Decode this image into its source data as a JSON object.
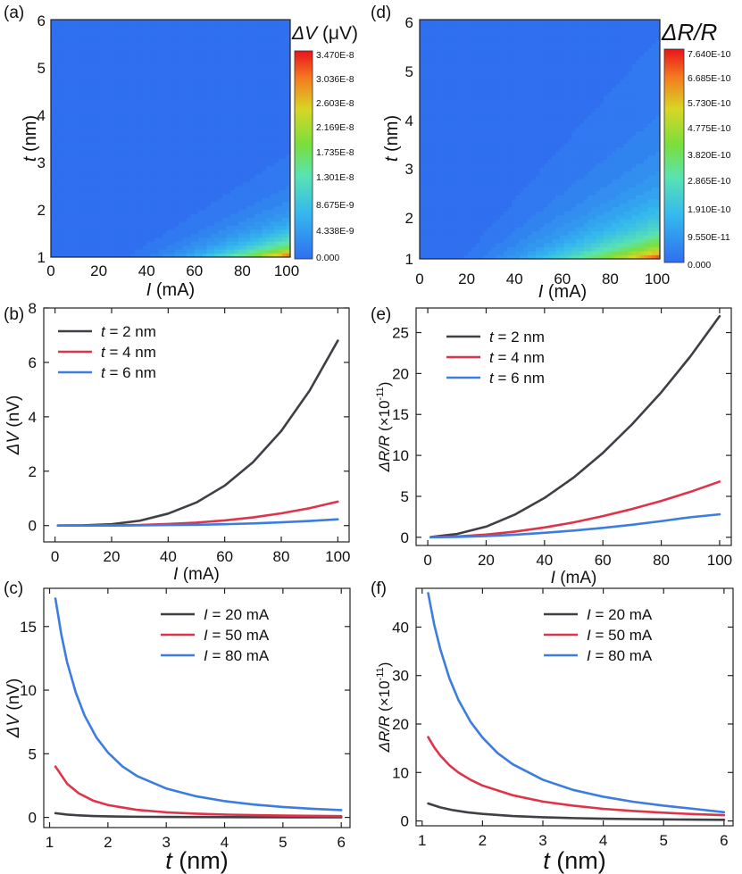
{
  "chart_data": [
    {
      "id": "a",
      "type": "heatmap",
      "panel_label": "(a)",
      "xlabel": "I (mA)",
      "xlabel_var": "I",
      "xlabel_unit": " (mA)",
      "ylabel": "t (nm)",
      "ylabel_var": "t",
      "ylabel_unit": " (nm)",
      "xlim": [
        0,
        100
      ],
      "ylim": [
        1,
        6
      ],
      "xticks": [
        "0",
        "20",
        "40",
        "60",
        "80",
        "100"
      ],
      "yticks": [
        "1",
        "2",
        "3",
        "4",
        "5",
        "6"
      ],
      "colorbar_title": "ΔV (μV)",
      "colorbar_title_var": "ΔV",
      "colorbar_title_unit": " (μV)",
      "colorbar_ticks": [
        "3.470E-8",
        "3.036E-8",
        "2.603E-8",
        "2.169E-8",
        "1.735E-8",
        "1.301E-8",
        "8.675E-9",
        "4.338E-9",
        "0.000"
      ],
      "model": "value ∝ I^3 / t^3",
      "zmax": 3.47e-08
    },
    {
      "id": "b",
      "type": "line",
      "panel_label": "(b)",
      "xlabel": "I (mA)",
      "xlabel_var": "I",
      "xlabel_unit": " (mA)",
      "ylabel": "ΔV (nV)",
      "ylabel_var": "ΔV",
      "ylabel_unit": " (nV)",
      "xlim": [
        -4,
        104
      ],
      "ylim": [
        -0.6,
        8
      ],
      "xticks": [
        0,
        20,
        40,
        60,
        80,
        100
      ],
      "yticks": [
        0,
        2,
        4,
        6,
        8
      ],
      "legend_position": "top-left",
      "series": [
        {
          "name": "t = 2 nm",
          "legend_var": "t",
          "legend_val": " = 2 nm",
          "color": "#3f3f46",
          "x": [
            1,
            10,
            20,
            30,
            40,
            50,
            60,
            70,
            80,
            90,
            100
          ],
          "y": [
            0.0,
            0.01,
            0.05,
            0.18,
            0.44,
            0.85,
            1.47,
            2.33,
            3.48,
            4.96,
            6.8
          ]
        },
        {
          "name": "t = 4 nm",
          "legend_var": "t",
          "legend_val": " = 4 nm",
          "color": "#e0334a",
          "x": [
            1,
            10,
            20,
            30,
            40,
            50,
            60,
            70,
            80,
            90,
            100
          ],
          "y": [
            0.0,
            0.0,
            0.01,
            0.02,
            0.06,
            0.11,
            0.19,
            0.3,
            0.45,
            0.64,
            0.88
          ]
        },
        {
          "name": "t = 6 nm",
          "legend_var": "t",
          "legend_val": " = 6 nm",
          "color": "#3b7de0",
          "x": [
            1,
            10,
            20,
            30,
            40,
            50,
            60,
            70,
            80,
            90,
            100
          ],
          "y": [
            0.0,
            0.0,
            0.0,
            0.01,
            0.02,
            0.03,
            0.05,
            0.08,
            0.12,
            0.17,
            0.23
          ]
        }
      ]
    },
    {
      "id": "c",
      "type": "line",
      "panel_label": "(c)",
      "xlabel": "t (nm)",
      "xlabel_var": "t",
      "xlabel_unit": " (nm)",
      "ylabel": "ΔV (nV)",
      "ylabel_var": "ΔV",
      "ylabel_unit": " (nV)",
      "xlim": [
        0.9,
        6.15
      ],
      "ylim": [
        -0.8,
        18
      ],
      "xticks": [
        1,
        2,
        3,
        4,
        5,
        6
      ],
      "yticks": [
        0,
        5,
        10,
        15
      ],
      "legend_position": "top-right",
      "series": [
        {
          "name": "I = 20 mA",
          "legend_var": "I",
          "legend_val": " = 20 mA",
          "color": "#3f3f46",
          "x": [
            1.1,
            1.3,
            1.5,
            1.75,
            2.0,
            2.5,
            3.0,
            3.5,
            4.0,
            5.0,
            6.0
          ],
          "y": [
            0.33,
            0.22,
            0.16,
            0.11,
            0.08,
            0.05,
            0.04,
            0.03,
            0.02,
            0.01,
            0.01
          ]
        },
        {
          "name": "I = 50 mA",
          "legend_var": "I",
          "legend_val": " = 50 mA",
          "color": "#e0334a",
          "x": [
            1.1,
            1.3,
            1.5,
            1.75,
            2.0,
            2.5,
            3.0,
            3.5,
            4.0,
            5.0,
            6.0
          ],
          "y": [
            4.0,
            2.65,
            1.89,
            1.31,
            0.97,
            0.59,
            0.4,
            0.29,
            0.22,
            0.14,
            0.1
          ]
        },
        {
          "name": "I = 80 mA",
          "legend_var": "I",
          "legend_val": " = 80 mA",
          "color": "#3b7de0",
          "x": [
            1.1,
            1.2,
            1.3,
            1.45,
            1.6,
            1.8,
            2.0,
            2.25,
            2.5,
            3.0,
            3.5,
            4.0,
            4.5,
            5.0,
            5.5,
            6.0
          ],
          "y": [
            17.2,
            14.4,
            12.2,
            9.8,
            8.0,
            6.3,
            5.1,
            4.0,
            3.25,
            2.27,
            1.67,
            1.28,
            1.01,
            0.82,
            0.68,
            0.57
          ]
        }
      ]
    },
    {
      "id": "d",
      "type": "heatmap",
      "panel_label": "(d)",
      "xlabel": "I (mA)",
      "xlabel_var": "I",
      "xlabel_unit": " (mA)",
      "ylabel": "t (nm)",
      "ylabel_var": "t",
      "ylabel_unit": " (nm)",
      "xlim": [
        0,
        100
      ],
      "ylim": [
        1,
        6
      ],
      "xticks": [
        "0",
        "20",
        "40",
        "60",
        "80",
        "100"
      ],
      "yticks": [
        "1",
        "2",
        "3",
        "4",
        "5",
        "6"
      ],
      "colorbar_title": "ΔR/R",
      "colorbar_ticks": [
        "7.640E-10",
        "6.685E-10",
        "5.730E-10",
        "4.775E-10",
        "3.820E-10",
        "2.865E-10",
        "1.910E-10",
        "9.550E-11",
        "0.000"
      ],
      "model": "value ∝ I^2 / t^2",
      "zmax": 7.64e-10
    },
    {
      "id": "e",
      "type": "line",
      "panel_label": "(e)",
      "xlabel": "I (mA)",
      "xlabel_var": "I",
      "xlabel_unit": " (mA)",
      "ylabel": "ΔR/R (×10⁻¹¹)",
      "ylabel_var": "ΔR/R",
      "ylabel_unit_pre": " (×10",
      "ylabel_unit_sup": "-11",
      "ylabel_unit_post": ")",
      "xlim": [
        -4,
        104
      ],
      "ylim": [
        -1,
        28
      ],
      "xticks": [
        0,
        20,
        40,
        60,
        80,
        100
      ],
      "yticks": [
        0,
        5,
        10,
        15,
        20,
        25
      ],
      "legend_position": "top-left",
      "series": [
        {
          "name": "t = 2 nm",
          "legend_var": "t",
          "legend_val": " = 2 nm",
          "color": "#3f3f46",
          "x": [
            1,
            10,
            20,
            30,
            40,
            50,
            60,
            70,
            80,
            90,
            100
          ],
          "y": [
            0.03,
            0.4,
            1.3,
            2.8,
            4.8,
            7.3,
            10.3,
            13.8,
            17.7,
            22.1,
            27.0
          ]
        },
        {
          "name": "t = 4 nm",
          "legend_var": "t",
          "legend_val": " = 4 nm",
          "color": "#e0334a",
          "x": [
            1,
            10,
            20,
            30,
            40,
            50,
            60,
            70,
            80,
            90,
            100
          ],
          "y": [
            0.01,
            0.1,
            0.33,
            0.7,
            1.2,
            1.82,
            2.58,
            3.45,
            4.44,
            5.55,
            6.8
          ]
        },
        {
          "name": "t = 6 nm",
          "legend_var": "t",
          "legend_val": " = 6 nm",
          "color": "#3b7de0",
          "x": [
            1,
            10,
            20,
            30,
            40,
            50,
            60,
            70,
            80,
            90,
            100
          ],
          "y": [
            0.0,
            0.04,
            0.15,
            0.32,
            0.55,
            0.82,
            1.15,
            1.53,
            1.97,
            2.45,
            2.8
          ]
        }
      ]
    },
    {
      "id": "f",
      "type": "line",
      "panel_label": "(f)",
      "xlabel": "t (nm)",
      "xlabel_var": "t",
      "xlabel_unit": " (nm)",
      "ylabel": "ΔR/R (×10⁻¹¹)",
      "ylabel_var": "ΔR/R",
      "ylabel_unit_pre": " (×10",
      "ylabel_unit_sup": "-11",
      "ylabel_unit_post": ")",
      "xlim": [
        0.9,
        6.15
      ],
      "ylim": [
        -1,
        48
      ],
      "xticks": [
        1,
        2,
        3,
        4,
        5,
        6
      ],
      "yticks": [
        0,
        10,
        20,
        30,
        40
      ],
      "legend_position": "top-right",
      "series": [
        {
          "name": "I = 20 mA",
          "legend_var": "I",
          "legend_val": " = 20 mA",
          "color": "#3f3f46",
          "x": [
            1.1,
            1.3,
            1.5,
            1.75,
            2.0,
            2.5,
            3.0,
            3.5,
            4.0,
            4.5,
            5.0,
            5.5,
            6.0
          ],
          "y": [
            3.6,
            2.8,
            2.25,
            1.78,
            1.45,
            1.02,
            0.76,
            0.59,
            0.47,
            0.38,
            0.32,
            0.27,
            0.23
          ]
        },
        {
          "name": "I = 50 mA",
          "legend_var": "I",
          "legend_val": " = 50 mA",
          "color": "#e0334a",
          "x": [
            1.1,
            1.2,
            1.3,
            1.45,
            1.6,
            1.8,
            2.0,
            2.5,
            3.0,
            3.5,
            4.0,
            4.5,
            5.0,
            5.5,
            6.0
          ],
          "y": [
            17.3,
            15.2,
            13.5,
            11.5,
            10.0,
            8.5,
            7.3,
            5.3,
            4.0,
            3.15,
            2.5,
            2.05,
            1.7,
            1.4,
            1.2
          ]
        },
        {
          "name": "I = 80 mA",
          "legend_var": "I",
          "legend_val": " = 80 mA",
          "color": "#3b7de0",
          "x": [
            1.1,
            1.2,
            1.3,
            1.45,
            1.6,
            1.8,
            2.0,
            2.25,
            2.5,
            3.0,
            3.5,
            4.0,
            4.5,
            5.0,
            5.5,
            6.0
          ],
          "y": [
            47.0,
            40.5,
            35.5,
            29.5,
            25.0,
            20.5,
            17.2,
            14.0,
            11.7,
            8.5,
            6.4,
            5.0,
            3.95,
            3.15,
            2.5,
            1.8
          ]
        }
      ]
    }
  ]
}
